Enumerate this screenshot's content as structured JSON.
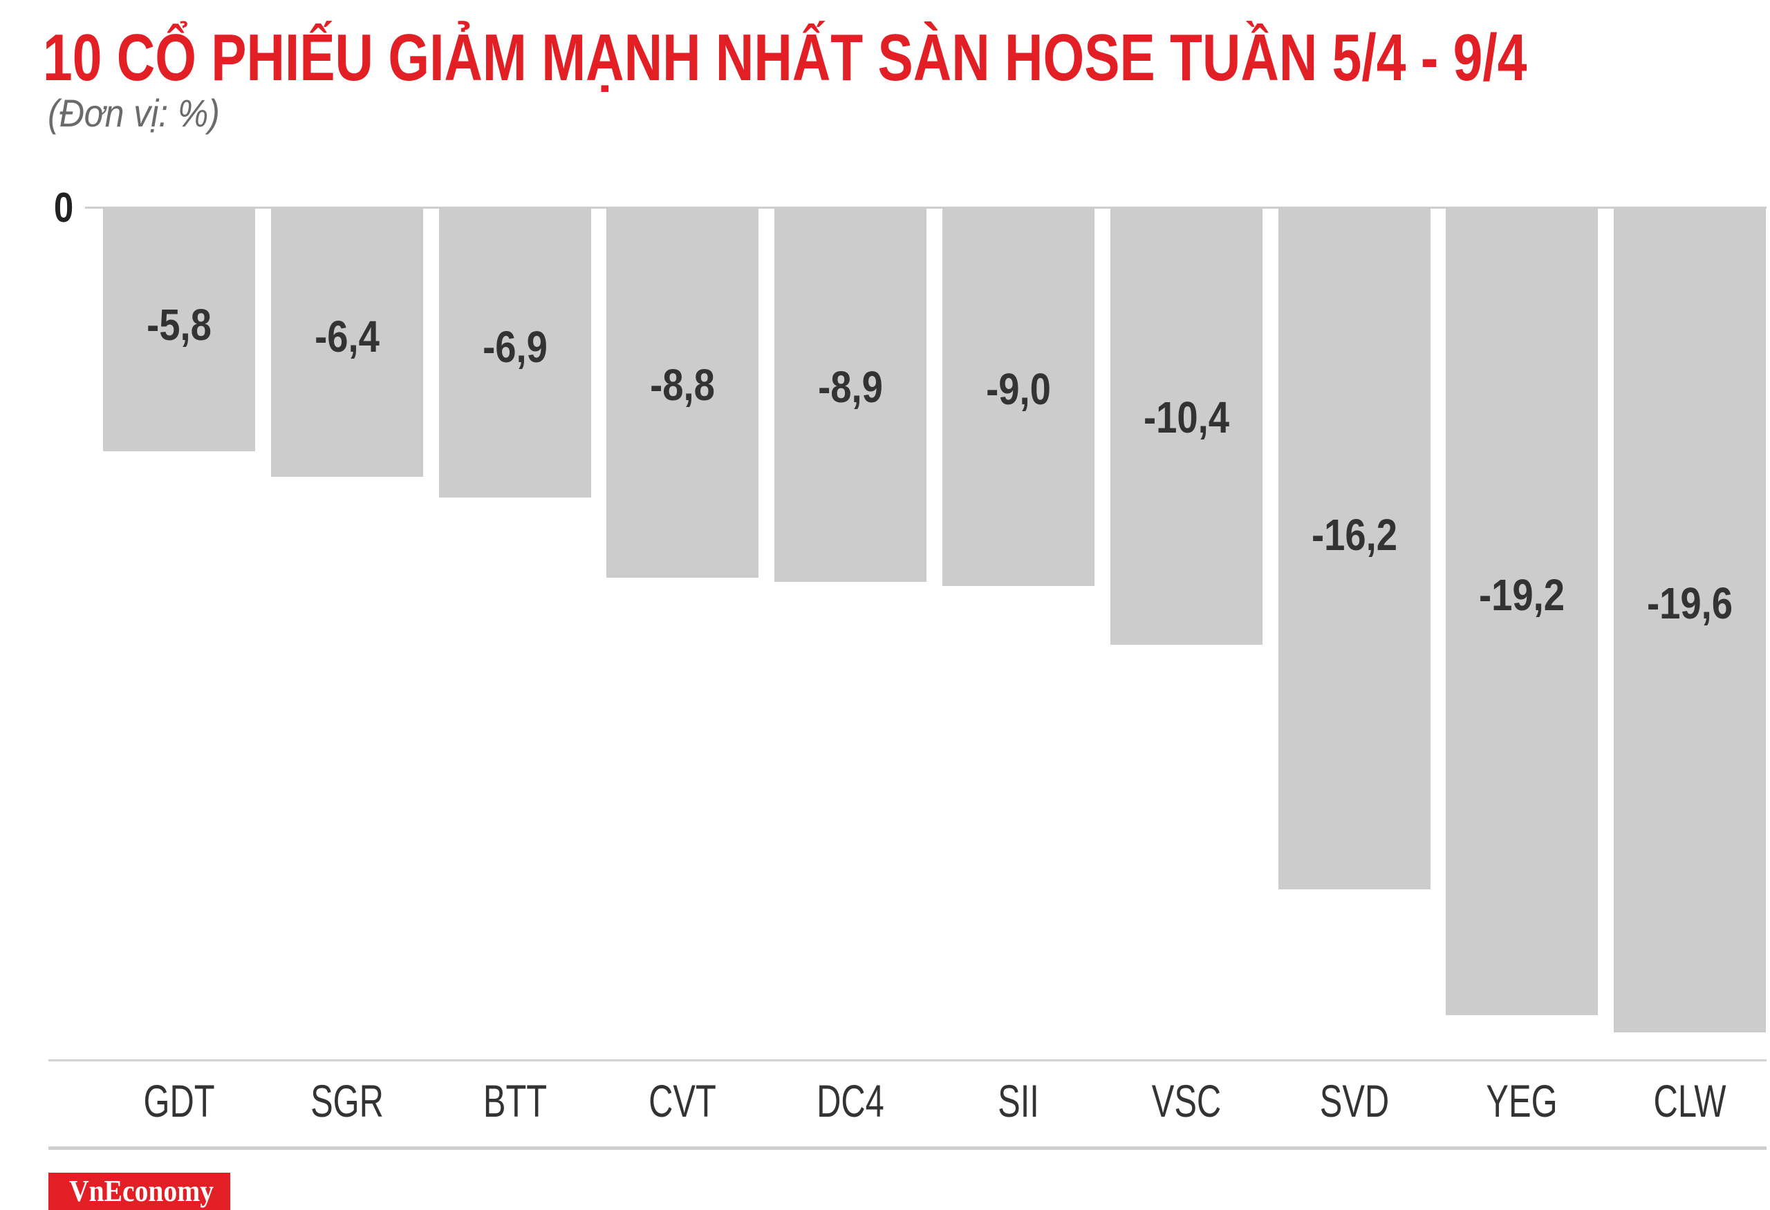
{
  "colors": {
    "title": "#e31f26",
    "bar": "#cccccc",
    "logo_background": "#e31f26",
    "label_text": "#333333"
  },
  "logo": {
    "text": "VnEconomy"
  },
  "chart_data": {
    "type": "bar",
    "title": "10 CỔ PHIẾU GIẢM MẠNH NHẤT SÀN HOSE TUẦN 5/4 - 9/4",
    "subtitle": "(Đơn vị: %)",
    "categories": [
      "GDT",
      "SGR",
      "BTT",
      "CVT",
      "DC4",
      "SII",
      "VSC",
      "SVD",
      "YEG",
      "CLW"
    ],
    "values": [
      -5.8,
      -6.4,
      -6.9,
      -8.8,
      -8.9,
      -9.0,
      -10.4,
      -16.2,
      -19.2,
      -19.6
    ],
    "decimal_separator": ",",
    "yticks": [
      0
    ],
    "ylim": [
      -20,
      0
    ],
    "xlabel": "",
    "ylabel": "",
    "grid": false,
    "legend": "none"
  }
}
